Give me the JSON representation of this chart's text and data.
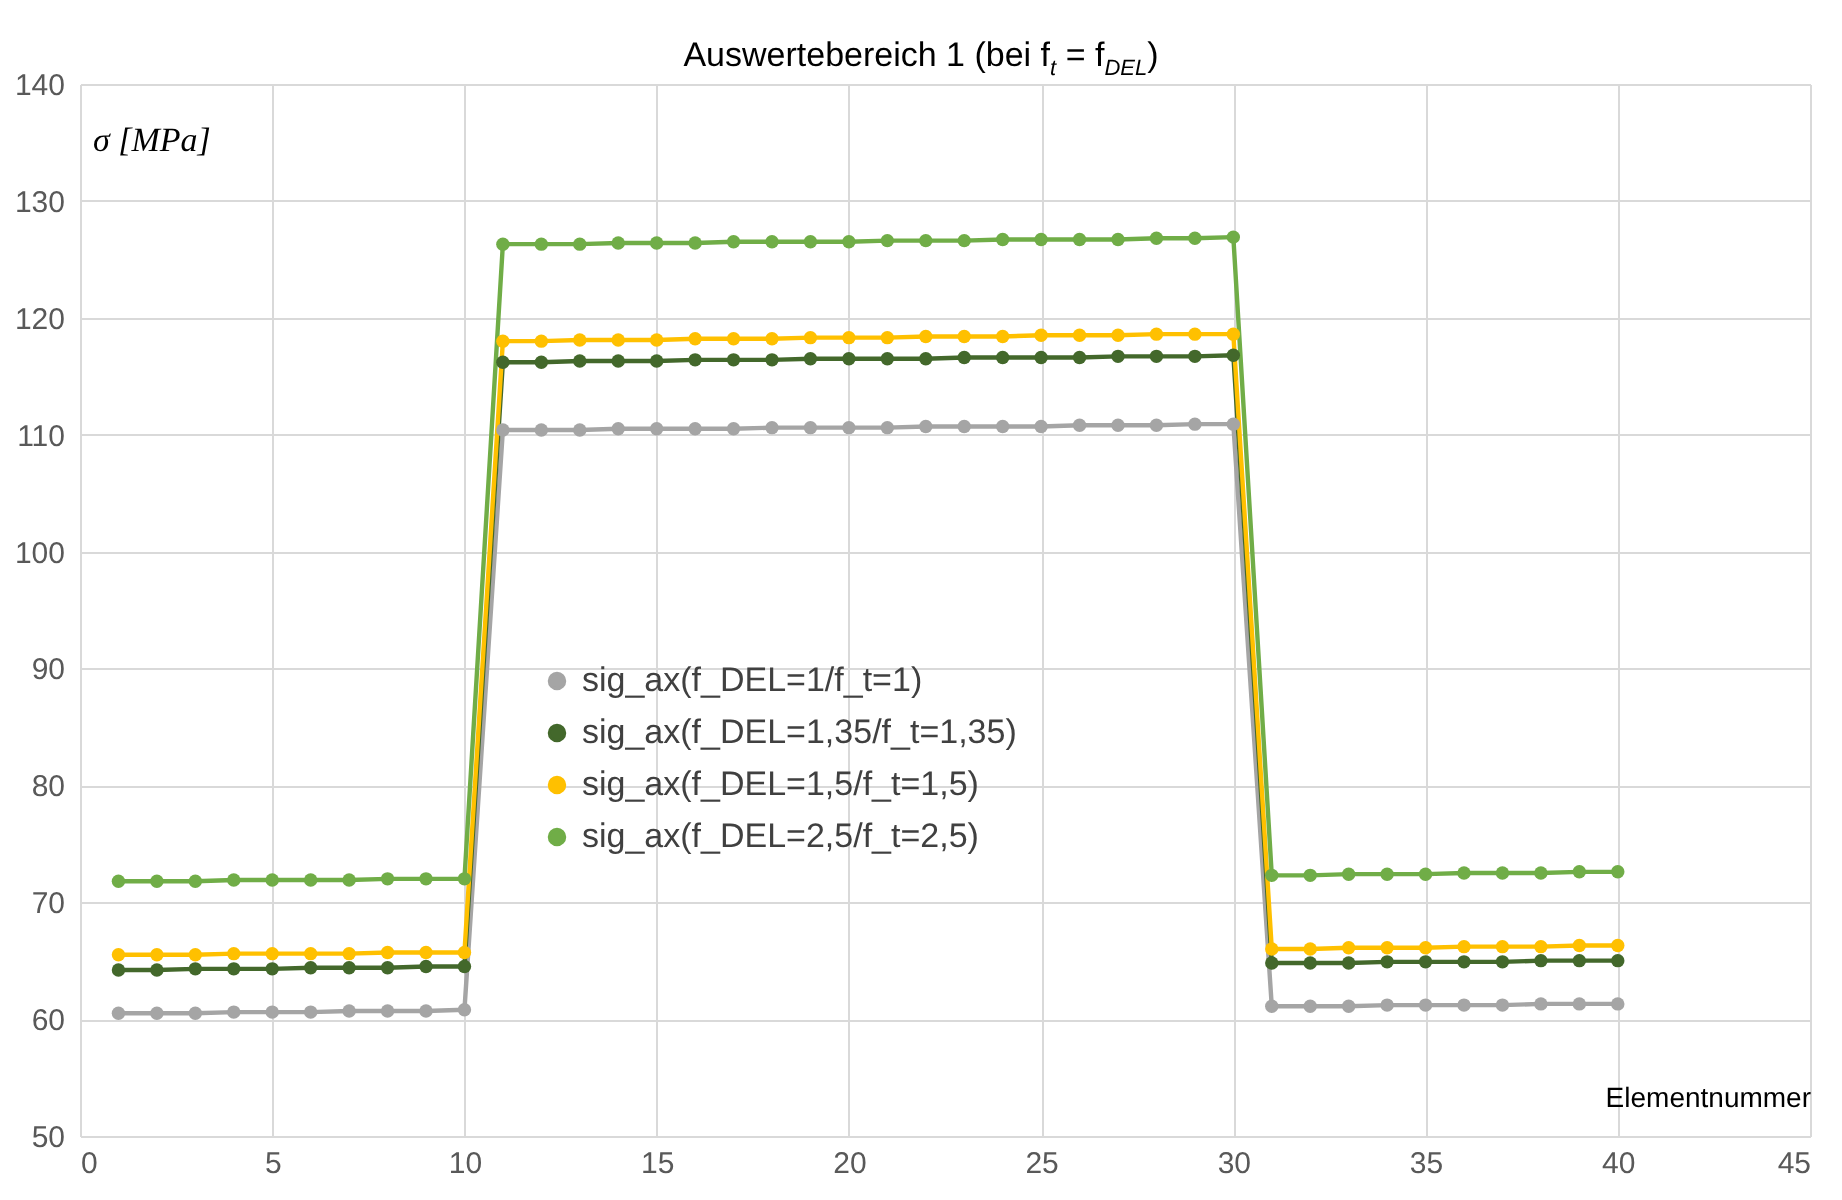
{
  "chart_data": {
    "type": "line",
    "title": "Auswertebereich 1 (bei f$_{t}$ = f$_{DEL}$)",
    "xlabel": "Elementnummer",
    "ylabel": "σ [MPa]",
    "x": [
      1,
      2,
      3,
      4,
      5,
      6,
      7,
      8,
      9,
      10,
      11,
      12,
      13,
      14,
      15,
      16,
      17,
      18,
      19,
      20,
      21,
      22,
      23,
      24,
      25,
      26,
      27,
      28,
      29,
      30,
      31,
      32,
      33,
      34,
      35,
      36,
      37,
      38,
      39,
      40
    ],
    "series": [
      {
        "name": "sig_ax(f_DEL=1/f_t=1)",
        "color": "#a5a5a5",
        "values": [
          60.5,
          60.5,
          60.5,
          60.6,
          60.6,
          60.6,
          60.7,
          60.7,
          60.7,
          60.8,
          110.4,
          110.4,
          110.4,
          110.5,
          110.5,
          110.5,
          110.5,
          110.6,
          110.6,
          110.6,
          110.6,
          110.7,
          110.7,
          110.7,
          110.7,
          110.8,
          110.8,
          110.8,
          110.9,
          110.9,
          61.1,
          61.1,
          61.1,
          61.2,
          61.2,
          61.2,
          61.2,
          61.3,
          61.3,
          61.3
        ]
      },
      {
        "name": "sig_ax(f_DEL=1,35/f_t=1,35)",
        "color": "#43682b",
        "values": [
          64.2,
          64.2,
          64.3,
          64.3,
          64.3,
          64.4,
          64.4,
          64.4,
          64.5,
          64.5,
          116.2,
          116.2,
          116.3,
          116.3,
          116.3,
          116.4,
          116.4,
          116.4,
          116.5,
          116.5,
          116.5,
          116.5,
          116.6,
          116.6,
          116.6,
          116.6,
          116.7,
          116.7,
          116.7,
          116.8,
          64.8,
          64.8,
          64.8,
          64.9,
          64.9,
          64.9,
          64.9,
          65.0,
          65.0,
          65.0
        ]
      },
      {
        "name": "sig_ax(f_DEL=1,5/f_t=1,5)",
        "color": "#ffc000",
        "values": [
          65.5,
          65.5,
          65.5,
          65.6,
          65.6,
          65.6,
          65.6,
          65.7,
          65.7,
          65.7,
          118.0,
          118.0,
          118.1,
          118.1,
          118.1,
          118.2,
          118.2,
          118.2,
          118.3,
          118.3,
          118.3,
          118.4,
          118.4,
          118.4,
          118.5,
          118.5,
          118.5,
          118.6,
          118.6,
          118.6,
          66.0,
          66.0,
          66.1,
          66.1,
          66.1,
          66.2,
          66.2,
          66.2,
          66.3,
          66.3
        ]
      },
      {
        "name": "sig_ax(f_DEL=2,5/f_t=2,5)",
        "color": "#70ad47",
        "values": [
          71.8,
          71.8,
          71.8,
          71.9,
          71.9,
          71.9,
          71.9,
          72.0,
          72.0,
          72.0,
          126.3,
          126.3,
          126.3,
          126.4,
          126.4,
          126.4,
          126.5,
          126.5,
          126.5,
          126.5,
          126.6,
          126.6,
          126.6,
          126.7,
          126.7,
          126.7,
          126.7,
          126.8,
          126.8,
          126.9,
          72.3,
          72.3,
          72.4,
          72.4,
          72.4,
          72.5,
          72.5,
          72.5,
          72.6,
          72.6
        ]
      }
    ],
    "xlim": [
      0,
      45
    ],
    "xticks": [
      0,
      5,
      10,
      15,
      20,
      25,
      30,
      35,
      40,
      45
    ],
    "ylim": [
      50,
      140
    ],
    "yticks": [
      50,
      60,
      70,
      80,
      90,
      100,
      110,
      120,
      130,
      140
    ],
    "grid": true,
    "legend": "left",
    "marker": "circle",
    "line_style": "solid"
  }
}
